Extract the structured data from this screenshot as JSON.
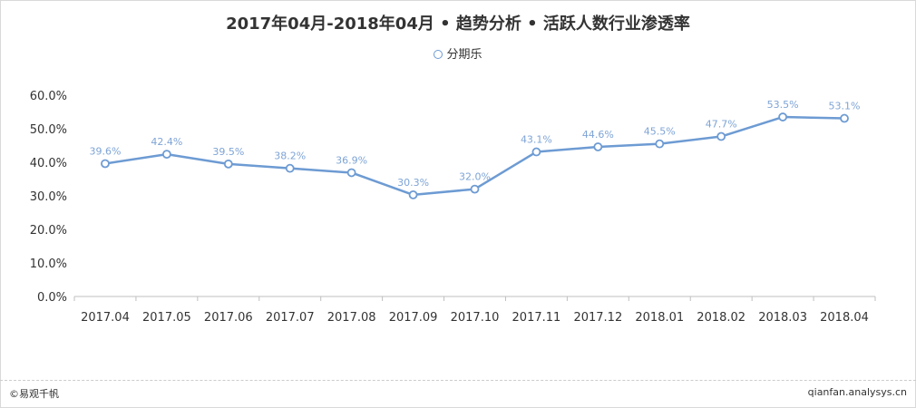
{
  "chart_data": {
    "type": "line",
    "title": "2017年04月-2018年04月 • 趋势分析 • 活跃人数行业渗透率",
    "categories": [
      "2017.04",
      "2017.05",
      "2017.06",
      "2017.07",
      "2017.08",
      "2017.09",
      "2017.10",
      "2017.11",
      "2017.12",
      "2018.01",
      "2018.02",
      "2018.03",
      "2018.04"
    ],
    "series": [
      {
        "name": "分期乐",
        "values": [
          39.6,
          42.4,
          39.5,
          38.2,
          36.9,
          30.3,
          32.0,
          43.1,
          44.6,
          45.5,
          47.7,
          53.5,
          53.1
        ],
        "labels": [
          "39.6%",
          "42.4%",
          "39.5%",
          "38.2%",
          "36.9%",
          "30.3%",
          "32.0%",
          "43.1%",
          "44.6%",
          "45.5%",
          "47.7%",
          "53.5%",
          "53.1%"
        ]
      }
    ],
    "y_ticks": [
      "0.0%",
      "10.0%",
      "20.0%",
      "30.0%",
      "40.0%",
      "50.0%",
      "60.0%"
    ],
    "ylim": [
      0,
      60
    ],
    "grid": false,
    "legend_position": "top-center",
    "line_color": "#6d9bd3"
  },
  "footer": {
    "brand": "©易观千帆",
    "site": "qianfan.analysys.cn"
  }
}
